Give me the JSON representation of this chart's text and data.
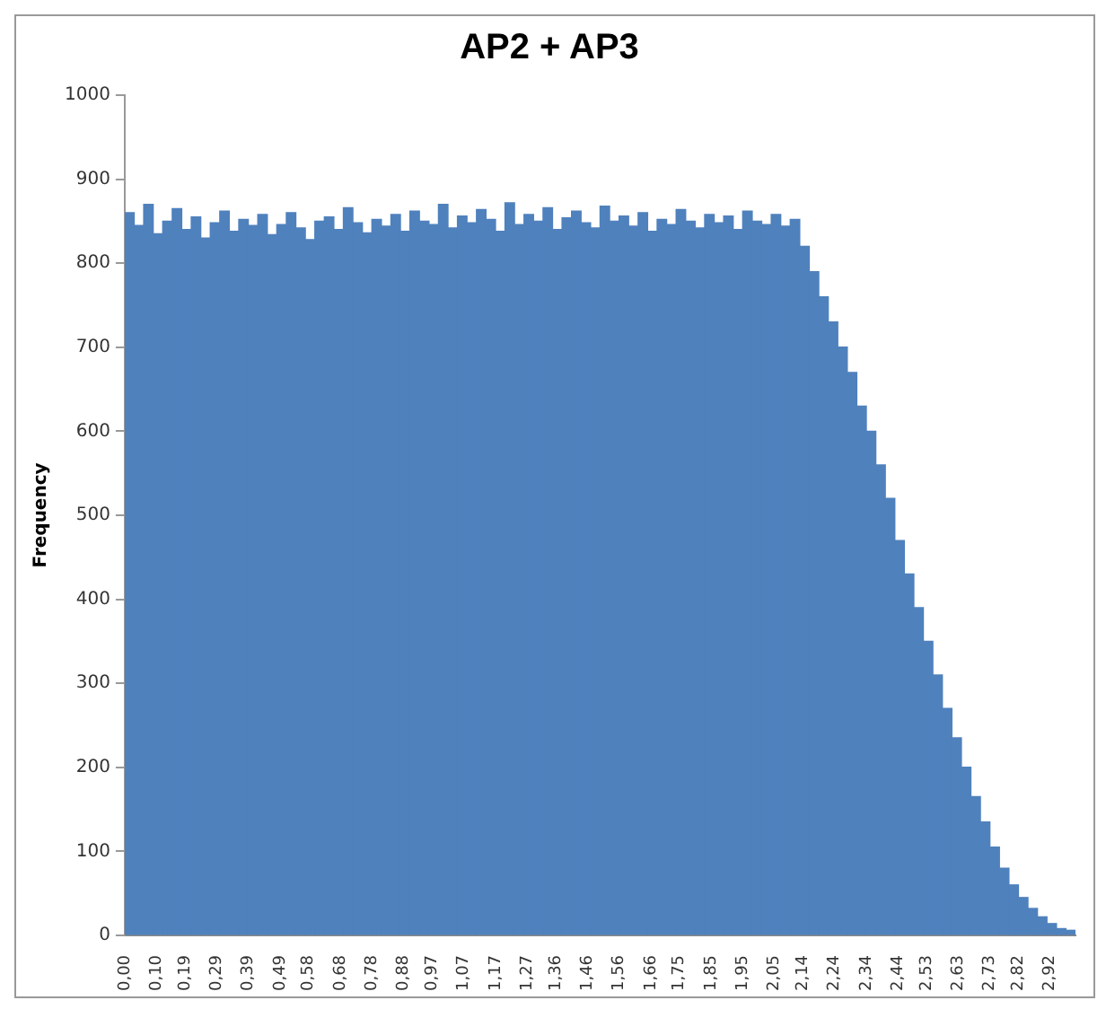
{
  "chart_data": {
    "type": "histogram",
    "title": "AP2 + AP3",
    "ylabel": "Frequency",
    "color": "#4f81bd",
    "bins": [
      0,
      0.03,
      0.06,
      0.09,
      0.12,
      0.15,
      0.18,
      0.21,
      0.24,
      0.27,
      0.3,
      0.33,
      0.36,
      0.39,
      0.42,
      0.45,
      0.48,
      0.51,
      0.54,
      0.57,
      0.6,
      0.63,
      0.66,
      0.69,
      0.72,
      0.75,
      0.78,
      0.81,
      0.84,
      0.87,
      0.9,
      0.93,
      0.96,
      0.99,
      1.02,
      1.05,
      1.08,
      1.11,
      1.14,
      1.17,
      1.2,
      1.23,
      1.26,
      1.29,
      1.32,
      1.35,
      1.38,
      1.41,
      1.44,
      1.47,
      1.5,
      1.53,
      1.56,
      1.59,
      1.62,
      1.65,
      1.68,
      1.71,
      1.74,
      1.77,
      1.8,
      1.83,
      1.86,
      1.89,
      1.92,
      1.95,
      1.98,
      2.01,
      2.04,
      2.07,
      2.1,
      2.13,
      2.16,
      2.19,
      2.22,
      2.25,
      2.28,
      2.31,
      2.34,
      2.37,
      2.4,
      2.43,
      2.46,
      2.49,
      2.52,
      2.55,
      2.58,
      2.61,
      2.64,
      2.67,
      2.7,
      2.73,
      2.76,
      2.79,
      2.82,
      2.85,
      2.88,
      2.91,
      2.94,
      2.97,
      3.0
    ],
    "values": [
      860,
      845,
      870,
      835,
      850,
      865,
      840,
      855,
      830,
      848,
      862,
      838,
      852,
      845,
      858,
      834,
      846,
      860,
      842,
      828,
      850,
      855,
      840,
      866,
      848,
      836,
      852,
      844,
      858,
      838,
      862,
      850,
      846,
      870,
      842,
      856,
      848,
      864,
      852,
      838,
      872,
      846,
      858,
      850,
      866,
      840,
      854,
      862,
      848,
      842,
      868,
      850,
      856,
      844,
      860,
      838,
      852,
      846,
      864,
      850,
      842,
      858,
      848,
      856,
      840,
      862,
      850,
      846,
      858,
      844,
      852,
      820,
      790,
      760,
      730,
      700,
      670,
      630,
      600,
      560,
      520,
      470,
      430,
      390,
      350,
      310,
      270,
      235,
      200,
      165,
      135,
      105,
      80,
      60,
      45,
      32,
      22,
      14,
      8,
      6
    ],
    "xlim": [
      0,
      3.0
    ],
    "xticks": [
      {
        "value": 0,
        "label": "0,00"
      },
      {
        "value": 0.1,
        "label": "0,10"
      },
      {
        "value": 0.19,
        "label": "0,19"
      },
      {
        "value": 0.29,
        "label": "0,29"
      },
      {
        "value": 0.39,
        "label": "0,39"
      },
      {
        "value": 0.49,
        "label": "0,49"
      },
      {
        "value": 0.58,
        "label": "0,58"
      },
      {
        "value": 0.68,
        "label": "0,68"
      },
      {
        "value": 0.78,
        "label": "0,78"
      },
      {
        "value": 0.88,
        "label": "0,88"
      },
      {
        "value": 0.97,
        "label": "0,97"
      },
      {
        "value": 1.07,
        "label": "1,07"
      },
      {
        "value": 1.17,
        "label": "1,17"
      },
      {
        "value": 1.27,
        "label": "1,27"
      },
      {
        "value": 1.36,
        "label": "1,36"
      },
      {
        "value": 1.46,
        "label": "1,46"
      },
      {
        "value": 1.56,
        "label": "1,56"
      },
      {
        "value": 1.66,
        "label": "1,66"
      },
      {
        "value": 1.75,
        "label": "1,75"
      },
      {
        "value": 1.85,
        "label": "1,85"
      },
      {
        "value": 1.95,
        "label": "1,95"
      },
      {
        "value": 2.05,
        "label": "2,05"
      },
      {
        "value": 2.14,
        "label": "2,14"
      },
      {
        "value": 2.24,
        "label": "2,24"
      },
      {
        "value": 2.34,
        "label": "2,34"
      },
      {
        "value": 2.44,
        "label": "2,44"
      },
      {
        "value": 2.53,
        "label": "2,53"
      },
      {
        "value": 2.63,
        "label": "2,63"
      },
      {
        "value": 2.73,
        "label": "2,73"
      },
      {
        "value": 2.82,
        "label": "2,82"
      },
      {
        "value": 2.92,
        "label": "2,92"
      }
    ],
    "ylim": [
      0,
      1000
    ],
    "yticks": [
      0,
      100,
      200,
      300,
      400,
      500,
      600,
      700,
      800,
      900,
      1000
    ],
    "grid": false,
    "legend": false
  }
}
